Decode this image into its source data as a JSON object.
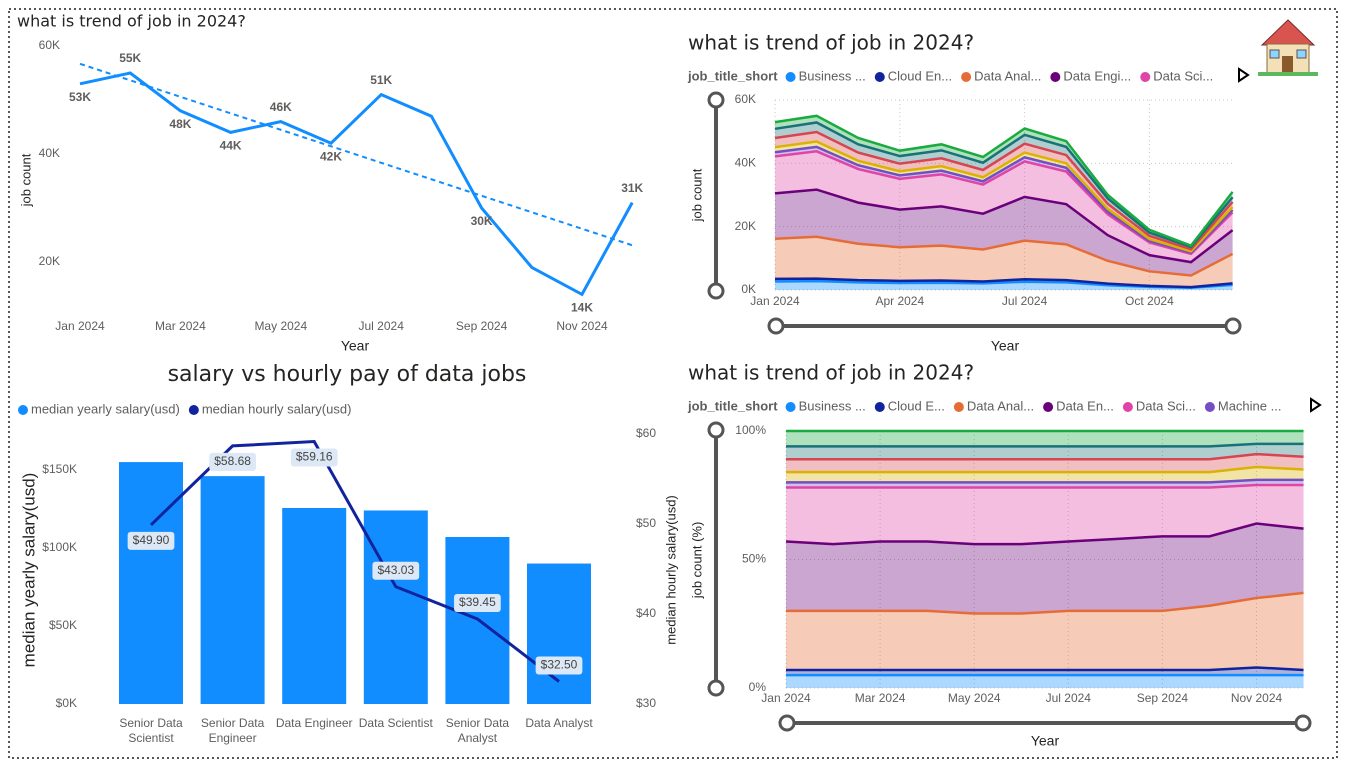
{
  "chart_data": [
    {
      "type": "line",
      "title": "what is trend of job in 2024?",
      "x_label": "Year",
      "y_label": "job count",
      "categories": [
        "Jan 2024",
        null,
        "Mar 2024",
        null,
        "May 2024",
        null,
        "Jul 2024",
        null,
        "Sep 2024",
        null,
        "Nov 2024",
        null
      ],
      "values": [
        53000,
        55000,
        48000,
        44000,
        46000,
        42000,
        51000,
        47000,
        30000,
        19000,
        14000,
        31000
      ],
      "value_labels": [
        "53K",
        "55K",
        "48K",
        "44K",
        "46K",
        "42K",
        "51K",
        null,
        "30K",
        null,
        "14K",
        "31K"
      ],
      "trendline": [
        56700,
        23100
      ],
      "color": "#118dff",
      "grid": false,
      "ylim": [
        10000,
        60000
      ],
      "yticks": [
        {
          "value": 20000,
          "label": "20K"
        },
        {
          "value": 40000,
          "label": "40K"
        },
        {
          "value": 60000,
          "label": "60K"
        }
      ]
    },
    {
      "type": "stacked_area",
      "title": "what is trend of job in 2024?",
      "x_label": "Year",
      "y_label": "job count",
      "legend_title": "job_title_short",
      "grid": true,
      "categories": [
        "Jan 2024",
        null,
        null,
        "Apr 2024",
        null,
        null,
        "Jul 2024",
        null,
        null,
        "Oct 2024",
        null,
        null
      ],
      "ylim": [
        0,
        60000
      ],
      "yticks": [
        {
          "value": 0,
          "label": "0K"
        },
        {
          "value": 20000,
          "label": "20K"
        },
        {
          "value": 40000,
          "label": "40K"
        },
        {
          "value": 60000,
          "label": "60K"
        }
      ],
      "series": [
        {
          "name": "Business ...",
          "color": "#118dff",
          "values": [
            2700,
            2800,
            2400,
            2200,
            2300,
            2100,
            2600,
            2400,
            1500,
            1000,
            700,
            1600
          ]
        },
        {
          "name": "Cloud En...",
          "color": "#12239e",
          "values": [
            800,
            800,
            700,
            700,
            700,
            600,
            800,
            700,
            500,
            300,
            200,
            500
          ]
        },
        {
          "name": "Data Anal...",
          "color": "#e66c37",
          "values": [
            12700,
            13200,
            11500,
            10600,
            11000,
            10100,
            12200,
            11300,
            7200,
            4600,
            3700,
            9300
          ]
        },
        {
          "name": "Data Engi...",
          "color": "#6b007b",
          "values": [
            14300,
            14900,
            13000,
            11900,
            12400,
            11300,
            13800,
            12700,
            8100,
            5100,
            4200,
            7500
          ]
        },
        {
          "name": "Data Sci...",
          "color": "#e044a7",
          "values": [
            11700,
            12100,
            10600,
            9700,
            10100,
            9200,
            11200,
            10300,
            6600,
            4000,
            2600,
            5600
          ]
        },
        {
          "color": "#744ec2",
          "values": [
            1300,
            1400,
            1200,
            1100,
            1200,
            1000,
            1300,
            1200,
            800,
            500,
            400,
            800
          ]
        },
        {
          "color": "#d9b300",
          "values": [
            1600,
            1700,
            1400,
            1300,
            1400,
            1300,
            1500,
            1400,
            900,
            600,
            400,
            900
          ]
        },
        {
          "color": "#d64550",
          "values": [
            2900,
            3000,
            2600,
            2400,
            2500,
            2300,
            2800,
            2600,
            1600,
            1000,
            700,
            1600
          ]
        },
        {
          "color": "#197278",
          "values": [
            2900,
            3000,
            2600,
            2400,
            2500,
            2300,
            2800,
            2600,
            1700,
            1000,
            700,
            1500
          ]
        },
        {
          "color": "#1aab40",
          "values": [
            2100,
            2100,
            2000,
            1700,
            1900,
            1800,
            2000,
            1800,
            1100,
            900,
            400,
            1700
          ]
        }
      ]
    },
    {
      "type": "stacked_area_100",
      "title": "what is trend of job in 2024?",
      "x_label": "Year",
      "y_label": "job count (%)",
      "legend_title": "job_title_short",
      "grid": true,
      "categories": [
        "Jan 2024",
        null,
        "Mar 2024",
        null,
        "May 2024",
        null,
        "Jul 2024",
        null,
        "Sep 2024",
        null,
        "Nov 2024",
        null
      ],
      "ylim": [
        0,
        100
      ],
      "yticks": [
        {
          "value": 0,
          "label": "0%"
        },
        {
          "value": 50,
          "label": "50%"
        },
        {
          "value": 100,
          "label": "100%"
        }
      ],
      "series": [
        {
          "name": "Business ...",
          "color": "#118dff",
          "values": [
            5,
            5,
            5,
            5,
            5,
            5,
            5,
            5,
            5,
            5,
            5,
            5
          ]
        },
        {
          "name": "Cloud E...",
          "color": "#12239e",
          "values": [
            2,
            2,
            2,
            2,
            2,
            2,
            2,
            2,
            2,
            2,
            3,
            2
          ]
        },
        {
          "name": "Data Anal...",
          "color": "#e66c37",
          "values": [
            23,
            23,
            23,
            23,
            22,
            22,
            23,
            23,
            23,
            25,
            27,
            30
          ]
        },
        {
          "name": "Data En...",
          "color": "#6b007b",
          "values": [
            27,
            26,
            27,
            27,
            27,
            27,
            27,
            28,
            29,
            27,
            29,
            25
          ]
        },
        {
          "name": "Data Sci...",
          "color": "#e044a7",
          "values": [
            21,
            22,
            21,
            21,
            22,
            22,
            21,
            20,
            19,
            19,
            15,
            17
          ]
        },
        {
          "name": "Machine ...",
          "color": "#744ec2",
          "values": [
            2,
            2,
            2,
            2,
            2,
            2,
            2,
            2,
            2,
            2,
            2,
            2
          ]
        },
        {
          "color": "#d9b300",
          "values": [
            4,
            4,
            4,
            4,
            4,
            4,
            4,
            4,
            4,
            4,
            5,
            4
          ]
        },
        {
          "color": "#d64550",
          "values": [
            5,
            5,
            5,
            5,
            5,
            5,
            5,
            5,
            5,
            5,
            5,
            5
          ]
        },
        {
          "color": "#197278",
          "values": [
            5,
            5,
            5,
            5,
            5,
            5,
            5,
            5,
            5,
            5,
            4,
            5
          ]
        },
        {
          "color": "#1aab40",
          "values": [
            6,
            6,
            6,
            6,
            6,
            6,
            6,
            6,
            6,
            6,
            5,
            5
          ]
        }
      ]
    },
    {
      "type": "combo",
      "title": "salary vs hourly pay of data jobs",
      "y_label": "median yearly salary(usd)",
      "y2_label": "median hourly salary(usd)",
      "categories": [
        "Senior Data Scientist",
        "Senior Data Engineer",
        "Data Engineer",
        "Data Scientist",
        "Senior Data Analyst",
        "Data Analyst"
      ],
      "ylim": [
        0,
        173000
      ],
      "yticks": [
        {
          "value": 0,
          "label": "$0K"
        },
        {
          "value": 50000,
          "label": "$50K"
        },
        {
          "value": 100000,
          "label": "$100K"
        },
        {
          "value": 150000,
          "label": "$150K"
        }
      ],
      "y2lim": [
        30,
        60
      ],
      "y2ticks": [
        {
          "value": 30,
          "label": "$30"
        },
        {
          "value": 40,
          "label": "$40"
        },
        {
          "value": 50,
          "label": "$50"
        },
        {
          "value": 60,
          "label": "$60"
        }
      ],
      "series": [
        {
          "name": "median yearly salary(usd)",
          "color": "#118dff",
          "kind": "bar",
          "values": [
            155000,
            146000,
            125600,
            124000,
            107000,
            90000
          ]
        },
        {
          "name": "median hourly salary(usd)",
          "color": "#12239e",
          "kind": "line",
          "axis": "y2",
          "values": [
            49.9,
            58.68,
            59.16,
            43.03,
            39.45,
            32.5
          ],
          "value_labels": [
            "$49.90",
            "$58.68",
            "$59.16",
            "$43.03",
            "$39.45",
            "$32.50"
          ]
        }
      ]
    }
  ]
}
